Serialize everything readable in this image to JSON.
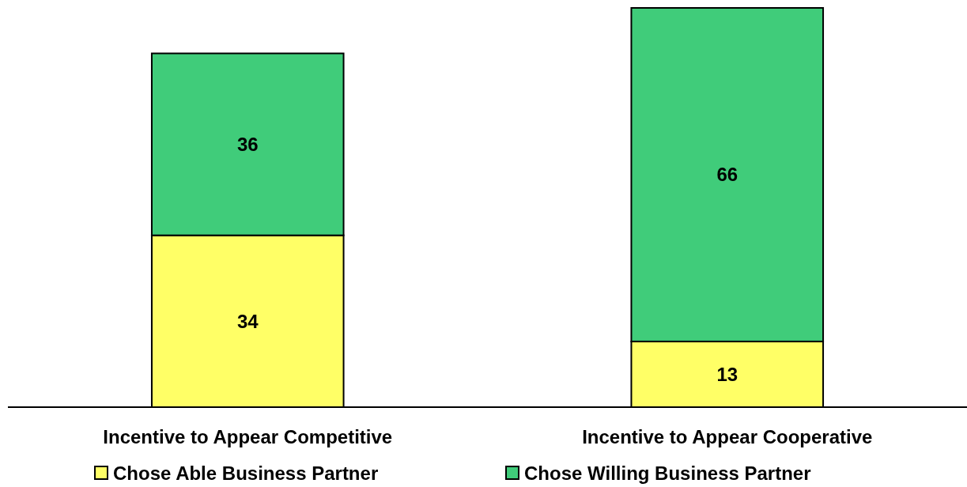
{
  "chart_data": {
    "type": "bar",
    "stacked": true,
    "categories": [
      "Incentive to Appear Competitive",
      "Incentive to Appear Cooperative"
    ],
    "series": [
      {
        "name": "Chose Able Business Partner",
        "color": "#ffff66",
        "values": [
          34,
          13
        ]
      },
      {
        "name": "Chose Willing Business Partner",
        "color": "#40cc7a",
        "values": [
          36,
          66
        ]
      }
    ],
    "data_labels": true,
    "legend": "bottom"
  }
}
